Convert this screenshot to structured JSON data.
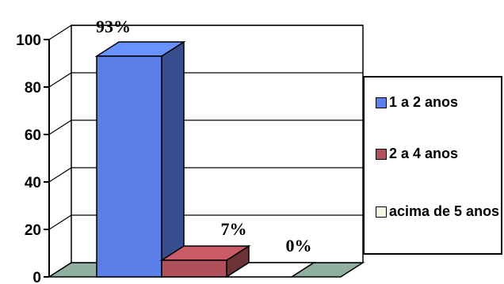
{
  "chart_data": {
    "type": "bar",
    "title": "",
    "xlabel": "",
    "ylabel": "",
    "ylim": [
      0,
      100
    ],
    "yticks": [
      "0",
      "20",
      "40",
      "60",
      "80",
      "100"
    ],
    "grid": true,
    "legend_position": "right",
    "three_d": true,
    "series": [
      {
        "name": "1 a 2 anos",
        "values": [
          93
        ],
        "label": "93%",
        "color": "#5b7fe6"
      },
      {
        "name": "2 a 4 anos",
        "values": [
          7
        ],
        "label": "7%",
        "color": "#b0505a"
      },
      {
        "name": "acima de 5 anos",
        "values": [
          0
        ],
        "label": "0%",
        "color": "#f7f7e4"
      }
    ]
  }
}
